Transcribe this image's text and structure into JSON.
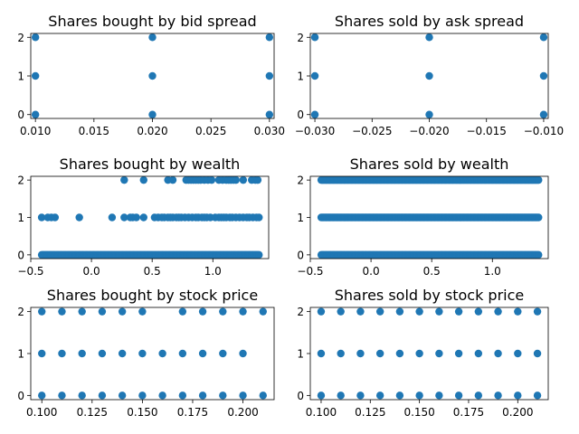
{
  "figure": {
    "background": "#ffffff",
    "marker_color": "#1f77b4"
  },
  "chart_data": [
    {
      "type": "scatter",
      "title": "Shares bought by bid spread",
      "xlabel": "",
      "ylabel": "",
      "xlim": [
        0.0096,
        0.0304
      ],
      "ylim": [
        -0.1,
        2.1
      ],
      "xticks": [
        0.01,
        0.015,
        0.02,
        0.025,
        0.03
      ],
      "xtick_labels": [
        "0.010",
        "0.015",
        "0.020",
        "0.025",
        "0.030"
      ],
      "yticks": [
        0,
        1,
        2
      ],
      "ytick_labels": [
        "0",
        "1",
        "2"
      ],
      "grid": false,
      "points": [
        [
          0.01,
          0
        ],
        [
          0.01,
          1
        ],
        [
          0.01,
          2
        ],
        [
          0.02,
          0
        ],
        [
          0.02,
          1
        ],
        [
          0.02,
          2
        ],
        [
          0.03,
          0
        ],
        [
          0.03,
          1
        ],
        [
          0.03,
          2
        ]
      ]
    },
    {
      "type": "scatter",
      "title": "Shares sold by ask spread",
      "xlabel": "",
      "ylabel": "",
      "xlim": [
        -0.0304,
        -0.0096
      ],
      "ylim": [
        -0.1,
        2.1
      ],
      "xticks": [
        -0.03,
        -0.025,
        -0.02,
        -0.015,
        -0.01
      ],
      "xtick_labels": [
        "−0.030",
        "−0.025",
        "−0.020",
        "−0.015",
        "−0.010"
      ],
      "yticks": [
        0,
        1,
        2
      ],
      "ytick_labels": [
        "0",
        "1",
        "2"
      ],
      "grid": false,
      "points": [
        [
          -0.03,
          0
        ],
        [
          -0.03,
          1
        ],
        [
          -0.03,
          2
        ],
        [
          -0.02,
          0
        ],
        [
          -0.02,
          1
        ],
        [
          -0.02,
          2
        ],
        [
          -0.01,
          0
        ],
        [
          -0.01,
          1
        ],
        [
          -0.01,
          2
        ]
      ]
    },
    {
      "type": "scatter",
      "title": "Shares bought by wealth",
      "xlabel": "",
      "ylabel": "",
      "xlim": [
        -0.5,
        1.46
      ],
      "ylim": [
        -0.1,
        2.1
      ],
      "xticks": [
        -0.5,
        0.0,
        0.5,
        1.0
      ],
      "xtick_labels": [
        "−0.5",
        "0.0",
        "0.5",
        "1.0"
      ],
      "yticks": [
        0,
        1,
        2
      ],
      "ytick_labels": [
        "0",
        "1",
        "2"
      ],
      "grid": false,
      "series_by_level": [
        {
          "y": 0,
          "x_range": [
            -0.41,
            1.38
          ]
        },
        {
          "y": 1,
          "x": [
            -0.41,
            -0.36,
            -0.33,
            -0.3,
            -0.1,
            0.17,
            0.27,
            0.32,
            0.34,
            0.37,
            0.43,
            0.52,
            0.55,
            0.58,
            0.6,
            0.63,
            0.65,
            0.67,
            0.7,
            0.72,
            0.74,
            0.77,
            0.8,
            0.83,
            0.86,
            0.88,
            0.91,
            0.93,
            0.95,
            0.98,
            1.02,
            1.05,
            1.07,
            1.09,
            1.11,
            1.14,
            1.16,
            1.19,
            1.22,
            1.25,
            1.28,
            1.3,
            1.33,
            1.36,
            1.38
          ]
        },
        {
          "y": 2,
          "x": [
            0.27,
            0.43,
            0.63,
            0.67,
            0.78,
            0.8,
            0.82,
            0.84,
            0.86,
            0.88,
            0.9,
            0.93,
            0.96,
            0.99,
            1.05,
            1.08,
            1.11,
            1.13,
            1.15,
            1.17,
            1.19,
            1.25,
            1.32,
            1.35,
            1.37
          ]
        }
      ]
    },
    {
      "type": "scatter",
      "title": "Shares sold by wealth",
      "xlabel": "",
      "ylabel": "",
      "xlim": [
        -0.5,
        1.46
      ],
      "ylim": [
        -0.1,
        2.1
      ],
      "xticks": [
        -0.5,
        0.0,
        0.5,
        1.0
      ],
      "xtick_labels": [
        "−0.5",
        "0.0",
        "0.5",
        "1.0"
      ],
      "yticks": [
        0,
        1,
        2
      ],
      "ytick_labels": [
        "0",
        "1",
        "2"
      ],
      "grid": false,
      "series_by_level": [
        {
          "y": 0,
          "x_range": [
            -0.41,
            1.38
          ]
        },
        {
          "y": 1,
          "x_range": [
            -0.41,
            1.38
          ]
        },
        {
          "y": 2,
          "x_range": [
            -0.41,
            1.38
          ]
        }
      ]
    },
    {
      "type": "scatter",
      "title": "Shares bought by stock price",
      "xlabel": "",
      "ylabel": "",
      "xlim": [
        0.0945,
        0.2155
      ],
      "ylim": [
        -0.1,
        2.1
      ],
      "xticks": [
        0.1,
        0.125,
        0.15,
        0.175,
        0.2
      ],
      "xtick_labels": [
        "0.100",
        "0.125",
        "0.150",
        "0.175",
        "0.200"
      ],
      "yticks": [
        0,
        1,
        2
      ],
      "ytick_labels": [
        "0",
        "1",
        "2"
      ],
      "grid": false,
      "series_by_level": [
        {
          "y": 0,
          "x": [
            0.1,
            0.11,
            0.12,
            0.13,
            0.14,
            0.15,
            0.16,
            0.17,
            0.18,
            0.19,
            0.2,
            0.21
          ]
        },
        {
          "y": 1,
          "x": [
            0.1,
            0.11,
            0.12,
            0.13,
            0.14,
            0.15,
            0.16,
            0.17,
            0.18,
            0.19,
            0.2
          ]
        },
        {
          "y": 2,
          "x": [
            0.1,
            0.11,
            0.12,
            0.13,
            0.14,
            0.15,
            0.17,
            0.18,
            0.19,
            0.2,
            0.21
          ]
        }
      ]
    },
    {
      "type": "scatter",
      "title": "Shares sold by stock price",
      "xlabel": "",
      "ylabel": "",
      "xlim": [
        0.0945,
        0.2155
      ],
      "ylim": [
        -0.1,
        2.1
      ],
      "xticks": [
        0.1,
        0.125,
        0.15,
        0.175,
        0.2
      ],
      "xtick_labels": [
        "0.100",
        "0.125",
        "0.150",
        "0.175",
        "0.200"
      ],
      "yticks": [
        0,
        1,
        2
      ],
      "ytick_labels": [
        "0",
        "1",
        "2"
      ],
      "grid": false,
      "series_by_level": [
        {
          "y": 0,
          "x": [
            0.1,
            0.11,
            0.12,
            0.13,
            0.14,
            0.15,
            0.16,
            0.17,
            0.18,
            0.19,
            0.2,
            0.21
          ]
        },
        {
          "y": 1,
          "x": [
            0.1,
            0.11,
            0.12,
            0.13,
            0.14,
            0.15,
            0.16,
            0.17,
            0.18,
            0.19,
            0.2,
            0.21
          ]
        },
        {
          "y": 2,
          "x": [
            0.1,
            0.11,
            0.12,
            0.13,
            0.14,
            0.15,
            0.16,
            0.17,
            0.18,
            0.19,
            0.2,
            0.21
          ]
        }
      ]
    }
  ]
}
